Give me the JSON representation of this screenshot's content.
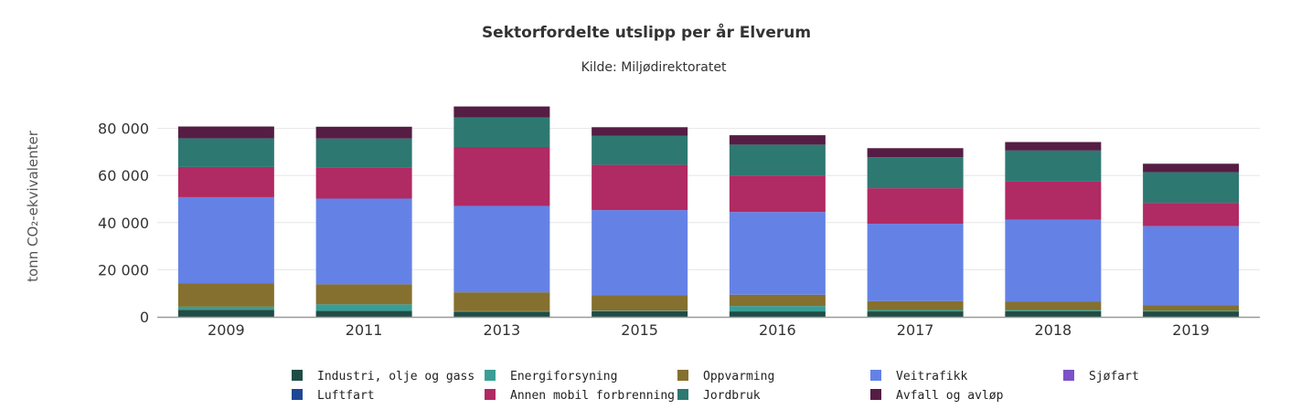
{
  "chart_data": {
    "type": "bar",
    "stacked": true,
    "title": "Sektorfordelte utslipp per år Elverum",
    "subtitle": "Kilde: Miljødirektoratet",
    "ylabel": "tonn CO₂-ekvivalenter",
    "xlabel": "",
    "ylim": [
      0,
      90000
    ],
    "yticks": [
      0,
      20000,
      40000,
      60000,
      80000
    ],
    "ytick_labels": [
      "0",
      "20 000",
      "40 000",
      "60 000",
      "80 000"
    ],
    "grid": true,
    "legend_position": "bottom",
    "categories": [
      "2009",
      "2011",
      "2013",
      "2015",
      "2016",
      "2017",
      "2018",
      "2019"
    ],
    "series": [
      {
        "name": "Industri, olje og gass",
        "color": "#1f4d45",
        "values": [
          3000,
          2500,
          2200,
          2400,
          2300,
          2300,
          2400,
          2300
        ]
      },
      {
        "name": "Energiforsyning",
        "color": "#3a9e96",
        "values": [
          1300,
          2800,
          200,
          200,
          2300,
          600,
          500,
          300
        ]
      },
      {
        "name": "Oppvarming",
        "color": "#85702f",
        "values": [
          10000,
          8500,
          8000,
          6500,
          4800,
          3800,
          3500,
          2400
        ]
      },
      {
        "name": "Veitrafikk",
        "color": "#6482e6",
        "values": [
          36500,
          36400,
          36700,
          36200,
          35100,
          32800,
          34800,
          33500
        ]
      },
      {
        "name": "Sjøfart",
        "color": "#7b52c7",
        "values": [
          0,
          0,
          0,
          0,
          0,
          0,
          0,
          0
        ]
      },
      {
        "name": "Luftfart",
        "color": "#1f4796",
        "values": [
          0,
          0,
          0,
          0,
          0,
          0,
          0,
          0
        ]
      },
      {
        "name": "Annen mobil forbrenning",
        "color": "#b02a63",
        "values": [
          12800,
          13300,
          25000,
          19200,
          15500,
          15100,
          16200,
          9900
        ]
      },
      {
        "name": "Jordbruk",
        "color": "#2e7872",
        "values": [
          12200,
          12200,
          12600,
          12300,
          13100,
          13200,
          13200,
          13000
        ]
      },
      {
        "name": "Avfall og avløp",
        "color": "#561d44",
        "values": [
          5000,
          5000,
          4600,
          3700,
          4000,
          3800,
          3600,
          3600
        ]
      }
    ]
  }
}
